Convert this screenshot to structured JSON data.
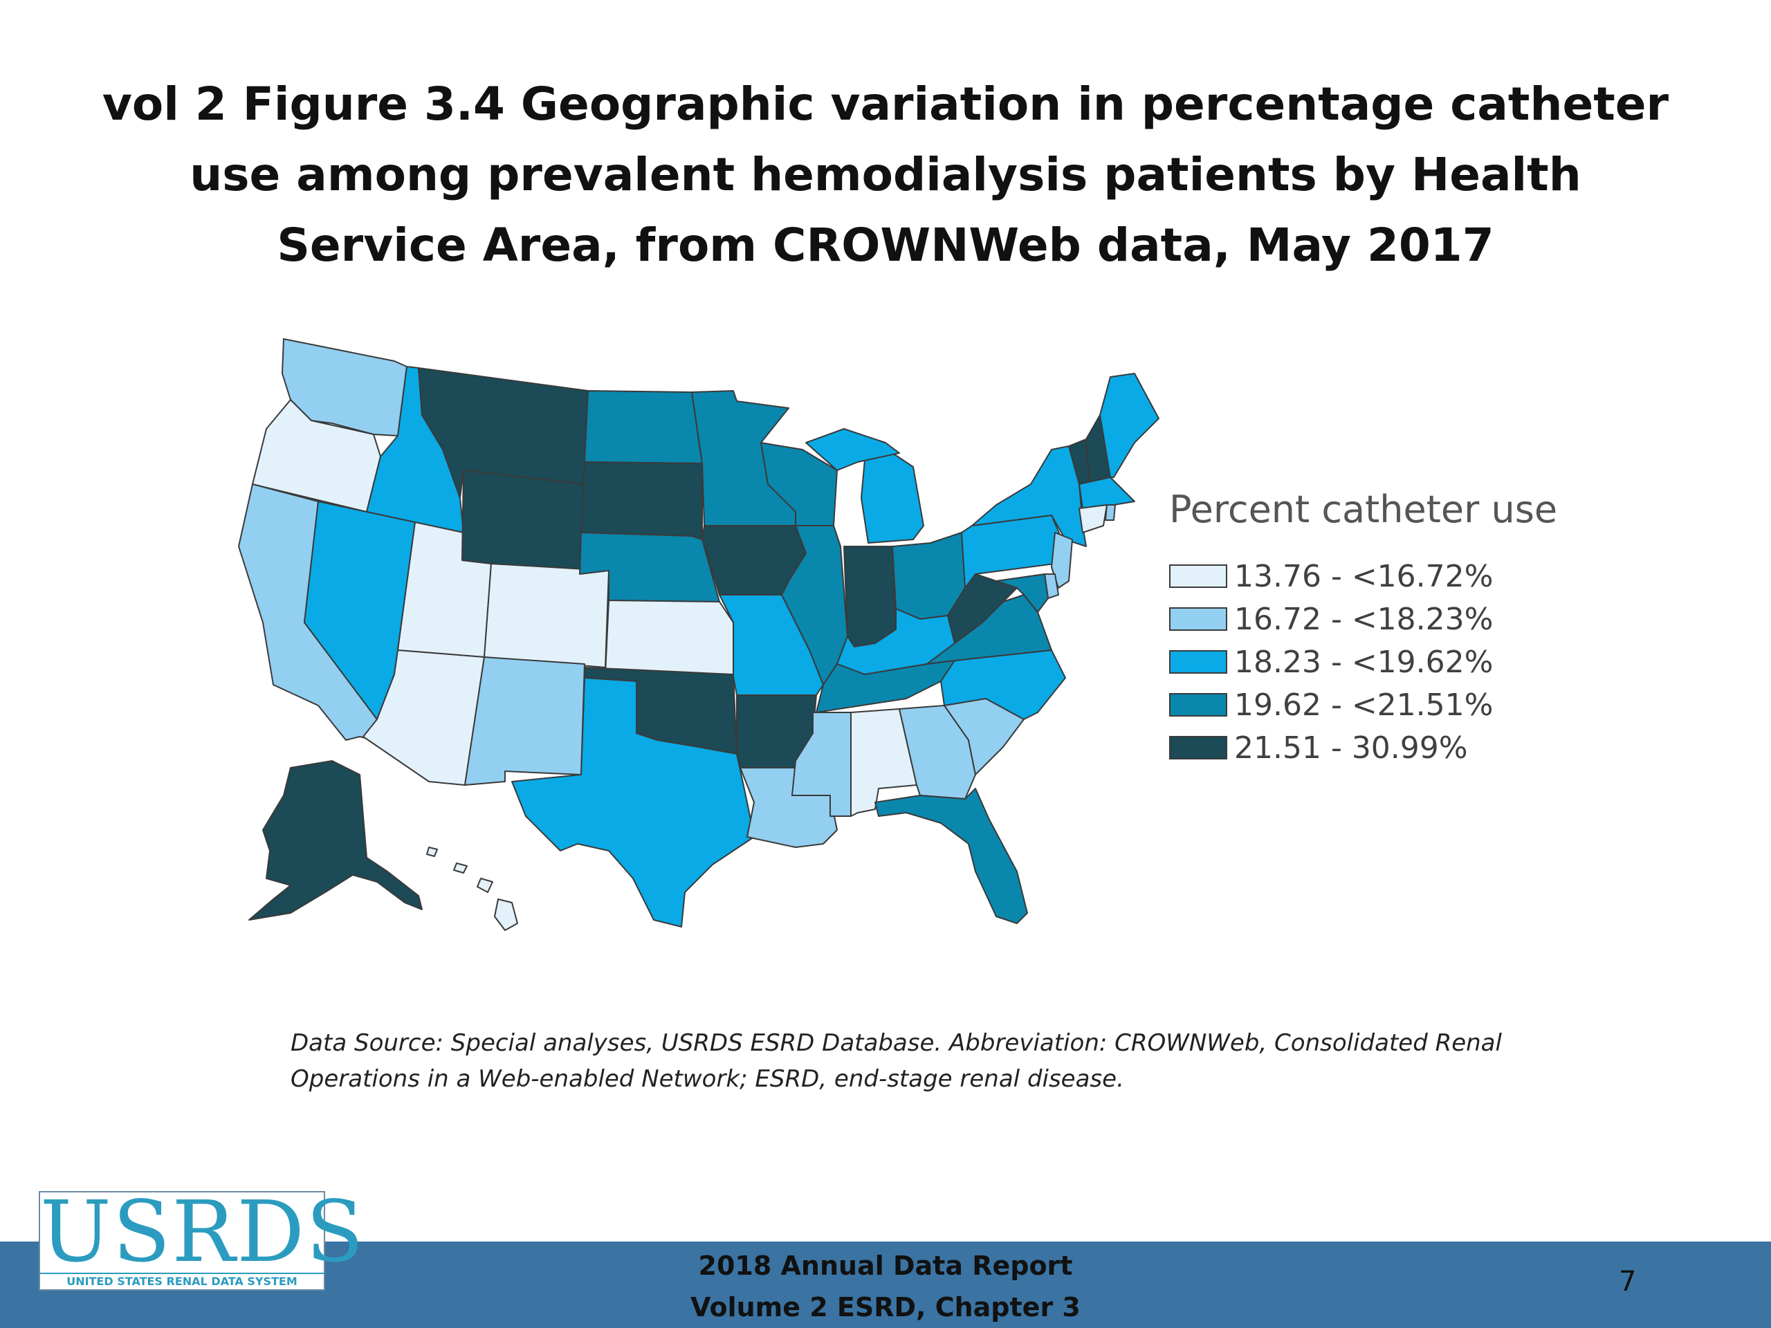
{
  "slide": {
    "title": "vol 2 Figure 3.4 Geographic variation in percentage catheter use among prevalent hemodialysis patients by Health Service Area, from CROWNWeb data, May 2017",
    "source_note": "Data Source: Special analyses, USRDS ESRD Database. Abbreviation: CROWNWeb, Consolidated Renal Operations in a Web-enabled Network; ESRD, end-stage renal disease.",
    "footer_line1": "2018 Annual Data Report",
    "footer_line2": "Volume 2 ESRD, Chapter 3",
    "page_number": "7",
    "logo_text": "USRDS",
    "logo_subtext": "UNITED STATES RENAL DATA SYSTEM"
  },
  "colors": {
    "footer_bar": "#3b74a3",
    "border": "#3a3a3a"
  },
  "legend": {
    "title": "Percent catheter use",
    "bins": [
      {
        "label": "13.76 - <16.72%",
        "color": "#e3f1fb"
      },
      {
        "label": "16.72 - <18.23%",
        "color": "#93cff1"
      },
      {
        "label": "18.23 - <19.62%",
        "color": "#09aae6"
      },
      {
        "label": "19.62 - <21.51%",
        "color": "#0a87ad"
      },
      {
        "label": "21.51 - 30.99%",
        "color": "#1c4a56"
      }
    ]
  },
  "chart_data": {
    "type": "choropleth",
    "title": "vol 2 Figure 3.4 Geographic variation in percentage catheter use among prevalent hemodialysis patients by Health Service Area, from CROWNWeb data, May 2017",
    "legend_title": "Percent catheter use",
    "bin_labels": [
      "13.76 - <16.72%",
      "16.72 - <18.23%",
      "18.23 - <19.62%",
      "19.62 - <21.51%",
      "21.51 - 30.99%"
    ],
    "regions": [
      {
        "state": "WA",
        "bin": 1
      },
      {
        "state": "OR",
        "bin": 0
      },
      {
        "state": "CA",
        "bin": 1
      },
      {
        "state": "ID",
        "bin": 2
      },
      {
        "state": "NV",
        "bin": 2
      },
      {
        "state": "UT",
        "bin": 0
      },
      {
        "state": "AZ",
        "bin": 0
      },
      {
        "state": "MT",
        "bin": 4
      },
      {
        "state": "WY",
        "bin": 4
      },
      {
        "state": "CO",
        "bin": 0
      },
      {
        "state": "NM",
        "bin": 1
      },
      {
        "state": "ND",
        "bin": 3
      },
      {
        "state": "SD",
        "bin": 4
      },
      {
        "state": "NE",
        "bin": 3
      },
      {
        "state": "KS",
        "bin": 0
      },
      {
        "state": "OK",
        "bin": 4
      },
      {
        "state": "TX",
        "bin": 2
      },
      {
        "state": "MN",
        "bin": 3
      },
      {
        "state": "IA",
        "bin": 4
      },
      {
        "state": "MO",
        "bin": 2
      },
      {
        "state": "AR",
        "bin": 4
      },
      {
        "state": "LA",
        "bin": 1
      },
      {
        "state": "WI",
        "bin": 3
      },
      {
        "state": "IL",
        "bin": 3
      },
      {
        "state": "MI",
        "bin": 2
      },
      {
        "state": "IN",
        "bin": 4
      },
      {
        "state": "OH",
        "bin": 3
      },
      {
        "state": "KY",
        "bin": 2
      },
      {
        "state": "TN",
        "bin": 3
      },
      {
        "state": "MS",
        "bin": 1
      },
      {
        "state": "AL",
        "bin": 0
      },
      {
        "state": "GA",
        "bin": 1
      },
      {
        "state": "FL",
        "bin": 3
      },
      {
        "state": "SC",
        "bin": 1
      },
      {
        "state": "NC",
        "bin": 2
      },
      {
        "state": "VA",
        "bin": 3
      },
      {
        "state": "WV",
        "bin": 4
      },
      {
        "state": "PA",
        "bin": 2
      },
      {
        "state": "NY",
        "bin": 2
      },
      {
        "state": "VT",
        "bin": 4
      },
      {
        "state": "NH",
        "bin": 4
      },
      {
        "state": "ME",
        "bin": 2
      },
      {
        "state": "MA",
        "bin": 2
      },
      {
        "state": "CT",
        "bin": 0
      },
      {
        "state": "RI",
        "bin": 1
      },
      {
        "state": "NJ",
        "bin": 1
      },
      {
        "state": "DE",
        "bin": 1
      },
      {
        "state": "MD",
        "bin": 3
      },
      {
        "state": "AK",
        "bin": 4
      },
      {
        "state": "HI",
        "bin": 0
      }
    ]
  }
}
